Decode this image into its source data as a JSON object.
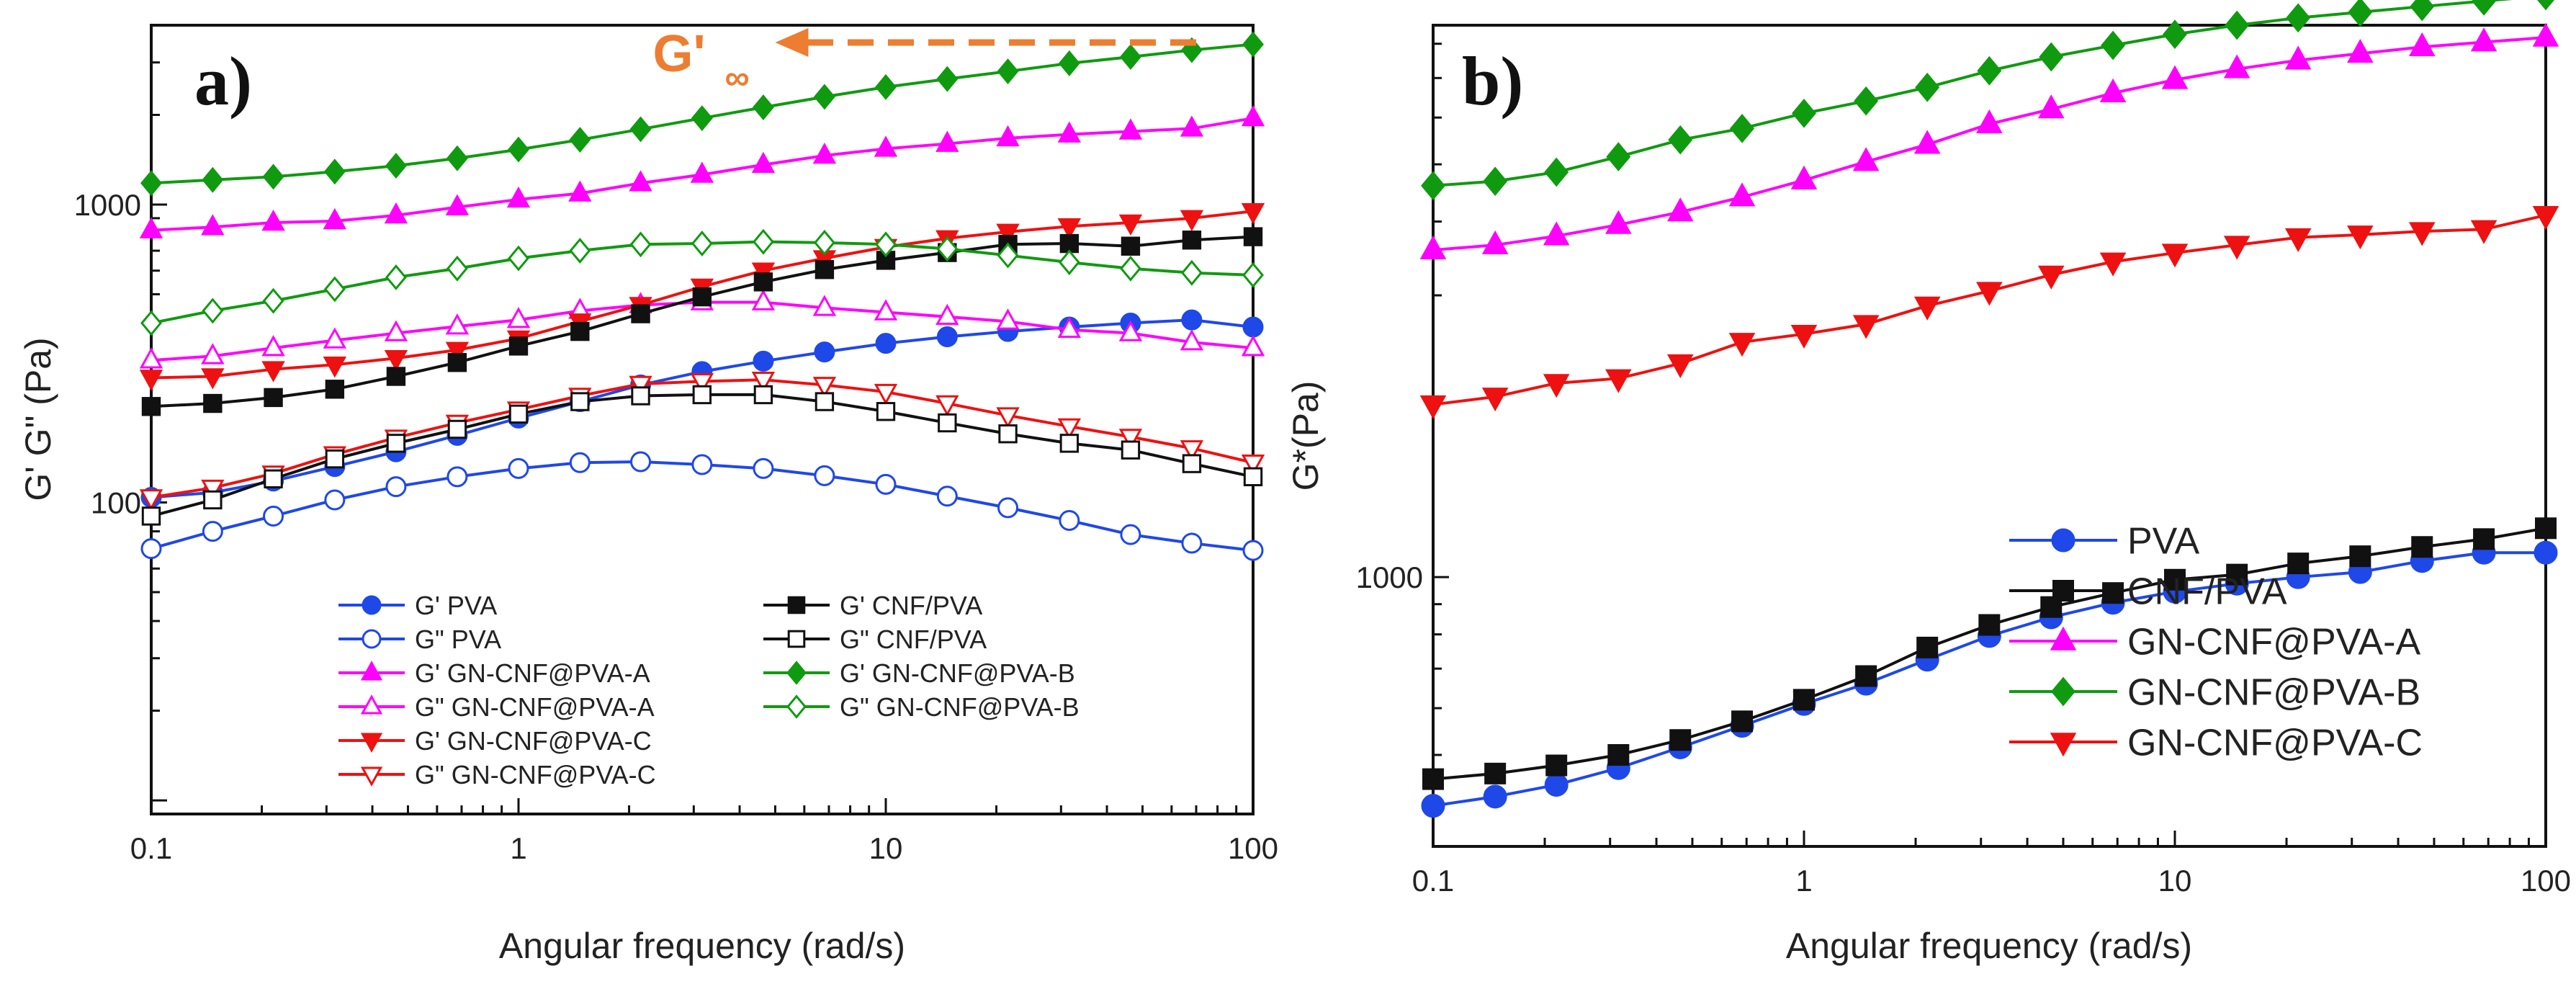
{
  "chart_data": [
    {
      "panel": "a)",
      "type": "line",
      "x_scale": "log",
      "y_scale": "log",
      "xlabel": "Angular frequency (rad/s)",
      "ylabel": "G' G\" (Pa)",
      "xlim": [
        0.1,
        100
      ],
      "ylim": [
        9,
        4000
      ],
      "x_ticks": [
        0.1,
        1,
        10,
        100
      ],
      "x_tick_labels": [
        "0.1",
        "1",
        "10",
        "100"
      ],
      "y_ticks": [
        100,
        1000
      ],
      "y_tick_labels": [
        "100",
        "1000"
      ],
      "annotation": {
        "text_main": "G'",
        "text_sub": "∞",
        "color": "#ed7d31",
        "at_y": 3500,
        "arrow_from_x": 70,
        "arrow_to_x": 5
      },
      "legend_position": "bottom-center",
      "x": [
        0.1,
        0.147,
        0.215,
        0.316,
        0.464,
        0.681,
        1,
        1.47,
        2.15,
        3.16,
        4.64,
        6.81,
        10,
        14.7,
        21.5,
        31.6,
        46.4,
        68.1,
        100
      ],
      "series": [
        {
          "name": "G'  PVA",
          "color": "#1f48e8",
          "marker": "circle",
          "filled": true,
          "values": [
            104,
            108,
            118,
            132,
            148,
            168,
            192,
            218,
            248,
            275,
            298,
            320,
            342,
            360,
            375,
            388,
            400,
            410,
            388
          ]
        },
        {
          "name": "G\" PVA",
          "color": "#1f48e8",
          "marker": "circle",
          "filled": false,
          "values": [
            70,
            80,
            90,
            102,
            113,
            122,
            130,
            136,
            137,
            134,
            130,
            123,
            115,
            105,
            96,
            87,
            78,
            73,
            69
          ]
        },
        {
          "name": "G'  GN-CNF@PVA-A",
          "color": "#ff00ff",
          "marker": "triangle-up",
          "filled": true,
          "values": [
            820,
            840,
            870,
            880,
            920,
            980,
            1040,
            1090,
            1180,
            1260,
            1360,
            1460,
            1540,
            1600,
            1670,
            1720,
            1760,
            1800,
            1950
          ]
        },
        {
          "name": "G\" GN-CNF@PVA-A",
          "color": "#ff00ff",
          "marker": "triangle-up",
          "filled": false,
          "values": [
            300,
            310,
            330,
            350,
            370,
            390,
            410,
            440,
            460,
            470,
            470,
            450,
            435,
            420,
            405,
            380,
            370,
            345,
            330
          ]
        },
        {
          "name": "G'  GN-CNF@PVA-C",
          "color": "#ee1111",
          "marker": "triangle-down",
          "filled": true,
          "values": [
            262,
            265,
            280,
            290,
            305,
            325,
            355,
            405,
            460,
            530,
            600,
            660,
            720,
            770,
            810,
            845,
            870,
            900,
            950
          ]
        },
        {
          "name": "G\" GN-CNF@PVA-C",
          "color": "#ee1111",
          "marker": "triangle-down",
          "filled": false,
          "values": [
            104,
            112,
            125,
            145,
            165,
            185,
            205,
            228,
            250,
            255,
            258,
            248,
            235,
            215,
            196,
            180,
            166,
            152,
            136
          ]
        },
        {
          "name": "G'  CNF/PVA",
          "color": "#111111",
          "marker": "square",
          "filled": true,
          "values": [
            210,
            215,
            225,
            240,
            265,
            295,
            335,
            375,
            430,
            490,
            550,
            605,
            650,
            690,
            735,
            740,
            725,
            760,
            780
          ]
        },
        {
          "name": "G\" CNF/PVA",
          "color": "#111111",
          "marker": "square",
          "filled": false,
          "values": [
            90,
            102,
            120,
            140,
            158,
            176,
            198,
            218,
            228,
            230,
            230,
            218,
            202,
            185,
            170,
            158,
            150,
            135,
            122
          ]
        },
        {
          "name": "G'  GN-CNF@PVA-B",
          "color": "#109a10",
          "marker": "diamond",
          "filled": true,
          "values": [
            1180,
            1210,
            1240,
            1290,
            1350,
            1430,
            1530,
            1650,
            1790,
            1950,
            2120,
            2300,
            2480,
            2640,
            2800,
            2980,
            3130,
            3300,
            3450
          ]
        },
        {
          "name": "G\" GN-CNF@PVA-B",
          "color": "#109a10",
          "marker": "diamond",
          "filled": false,
          "values": [
            400,
            440,
            475,
            520,
            570,
            610,
            660,
            700,
            735,
            740,
            750,
            745,
            735,
            710,
            675,
            640,
            610,
            590,
            580
          ]
        }
      ]
    },
    {
      "panel": "b)",
      "type": "line",
      "x_scale": "log",
      "y_scale": "log",
      "xlabel": "Angular frequency (rad/s)",
      "ylabel": "G*(Pa)",
      "xlim": [
        0.1,
        100
      ],
      "ylim": [
        350,
        8600
      ],
      "x_ticks": [
        0.1,
        1,
        10,
        100
      ],
      "x_tick_labels": [
        "0.1",
        "1",
        "10",
        "100"
      ],
      "y_ticks": [
        1000
      ],
      "y_tick_labels": [
        "1000"
      ],
      "legend_position": "bottom-right",
      "x": [
        0.1,
        0.147,
        0.215,
        0.316,
        0.464,
        0.681,
        1,
        1.47,
        2.15,
        3.16,
        4.64,
        6.81,
        10,
        14.7,
        21.5,
        31.6,
        46.4,
        68.1,
        100
      ],
      "series": [
        {
          "name": "PVA",
          "color": "#1f48e8",
          "marker": "circle",
          "filled": true,
          "values": [
            410,
            425,
            445,
            475,
            515,
            560,
            610,
            660,
            725,
            795,
            855,
            905,
            945,
            975,
            1000,
            1020,
            1065,
            1100,
            1100
          ]
        },
        {
          "name": "CNF/PVA",
          "color": "#111111",
          "marker": "square",
          "filled": true,
          "values": [
            455,
            465,
            480,
            500,
            530,
            570,
            620,
            680,
            760,
            830,
            890,
            940,
            990,
            1010,
            1055,
            1085,
            1125,
            1160,
            1210
          ]
        },
        {
          "name": "GN-CNF@PVA-A",
          "color": "#ff00ff",
          "marker": "triangle-up",
          "filled": true,
          "values": [
            3580,
            3650,
            3780,
            3950,
            4150,
            4400,
            4700,
            5050,
            5400,
            5850,
            6200,
            6600,
            6950,
            7250,
            7500,
            7700,
            7900,
            8050,
            8200
          ]
        },
        {
          "name": "GN-CNF@PVA-B",
          "color": "#109a10",
          "marker": "diamond",
          "filled": true,
          "values": [
            4600,
            4680,
            4850,
            5150,
            5500,
            5750,
            6100,
            6400,
            6750,
            7200,
            7600,
            7950,
            8300,
            8600,
            8850,
            9050,
            9250,
            9450,
            9650
          ]
        },
        {
          "name": "GN-CNF@PVA-C",
          "color": "#ee1111",
          "marker": "triangle-down",
          "filled": true,
          "values": [
            1960,
            2020,
            2130,
            2170,
            2300,
            2500,
            2580,
            2680,
            2880,
            3050,
            3250,
            3420,
            3540,
            3650,
            3760,
            3800,
            3850,
            3880,
            4100
          ]
        }
      ]
    }
  ]
}
